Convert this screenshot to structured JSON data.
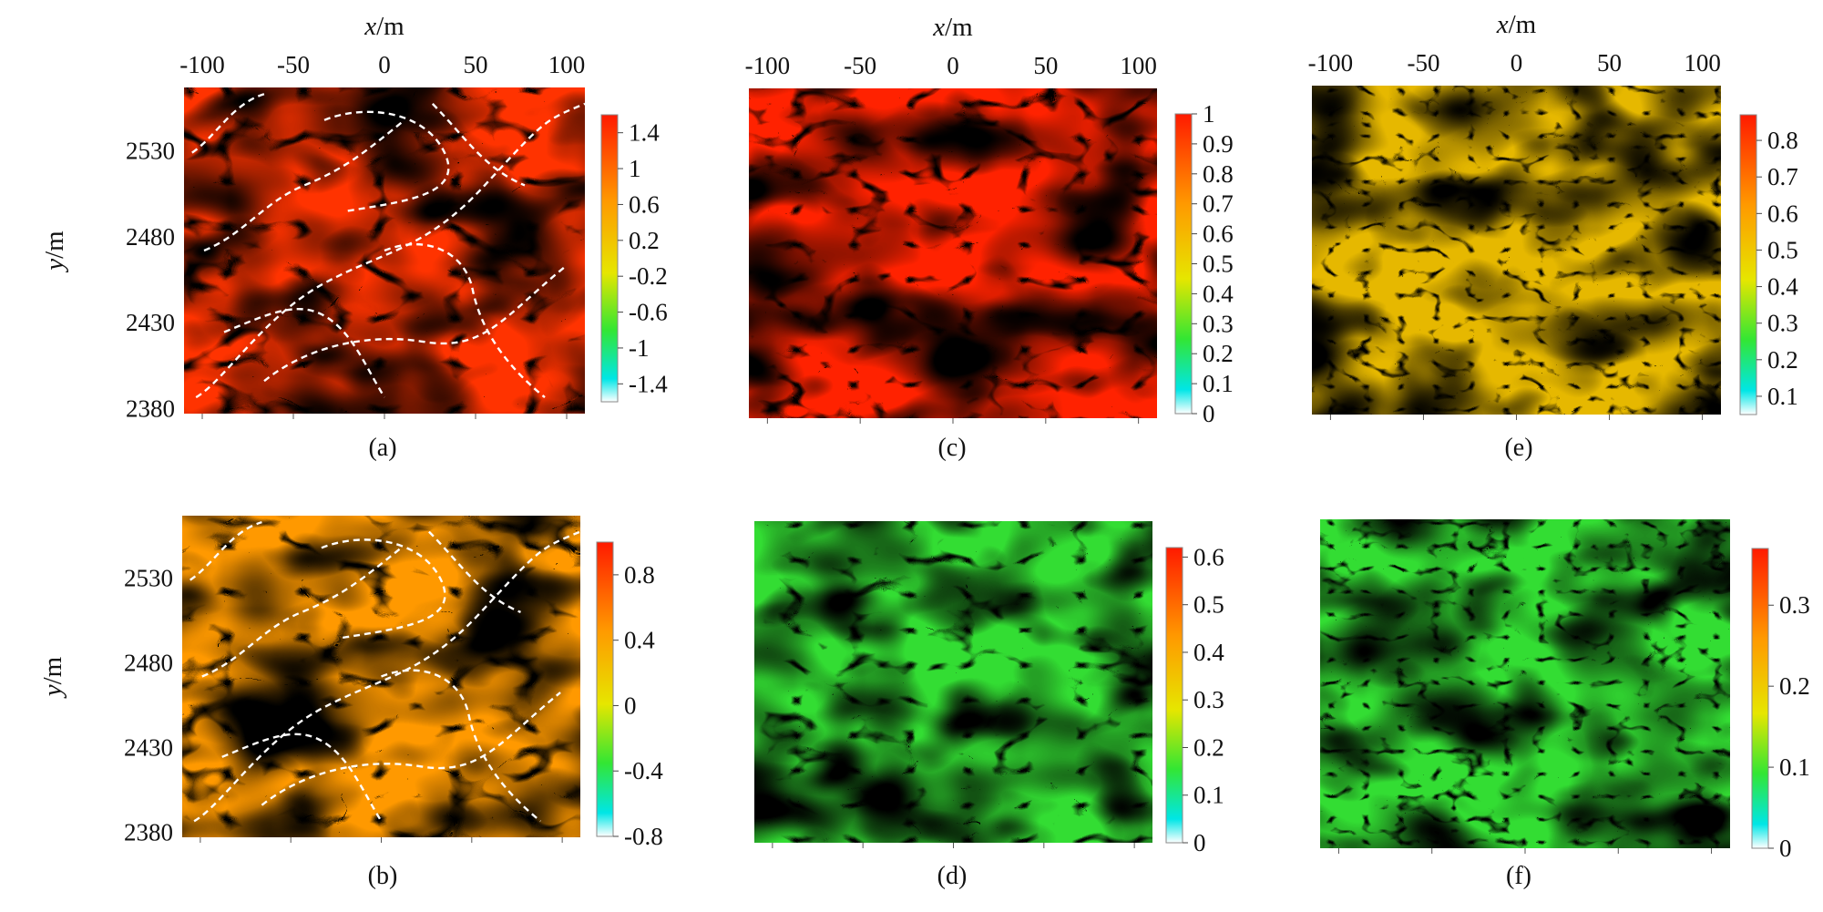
{
  "figure": {
    "x_axis_label": "x",
    "x_axis_unit": "/m",
    "y_axis_label": "y",
    "y_axis_unit": "/m",
    "x_ticks": [
      "-100",
      "-50",
      "0",
      "50",
      "100"
    ],
    "y_ticks": [
      "2530",
      "2480",
      "2430",
      "2380"
    ]
  },
  "chart_data": [
    {
      "type": "heatmap",
      "panel_label": "(a)",
      "x_ticks": [
        -100,
        -50,
        0,
        50,
        100
      ],
      "y_ticks": [
        2530,
        2480,
        2430,
        2380
      ],
      "colorbar_ticks": [
        "1.4",
        "1",
        "0.6",
        "0.2",
        "-0.2",
        "-0.6",
        "-1",
        "-1.4"
      ],
      "colorbar_range": [
        -1.6,
        1.6
      ],
      "dashed_overlay": true
    },
    {
      "type": "heatmap",
      "panel_label": "(b)",
      "x_ticks": [
        -100,
        -50,
        0,
        50,
        100
      ],
      "y_ticks": [
        2530,
        2480,
        2430,
        2380
      ],
      "colorbar_ticks": [
        "0.8",
        "0.4",
        "0",
        "-0.4",
        "-0.8"
      ],
      "colorbar_range": [
        -0.8,
        1.0
      ],
      "dashed_overlay": true
    },
    {
      "type": "heatmap",
      "panel_label": "(c)",
      "x_ticks": [
        -100,
        -50,
        0,
        50,
        100
      ],
      "colorbar_ticks": [
        "1",
        "0.9",
        "0.8",
        "0.7",
        "0.6",
        "0.5",
        "0.4",
        "0.3",
        "0.2",
        "0.1",
        "0"
      ],
      "colorbar_range": [
        0,
        1
      ]
    },
    {
      "type": "heatmap",
      "panel_label": "(d)",
      "colorbar_ticks": [
        "0.6",
        "0.5",
        "0.4",
        "0.3",
        "0.2",
        "0.1",
        "0"
      ],
      "colorbar_range": [
        0,
        0.62
      ]
    },
    {
      "type": "heatmap",
      "panel_label": "(e)",
      "x_ticks": [
        -100,
        -50,
        0,
        50,
        100
      ],
      "colorbar_ticks": [
        "0.8",
        "0.7",
        "0.6",
        "0.5",
        "0.4",
        "0.3",
        "0.2",
        "0.1"
      ],
      "colorbar_range": [
        0.05,
        0.87
      ]
    },
    {
      "type": "heatmap",
      "panel_label": "(f)",
      "colorbar_ticks": [
        "0.3",
        "0.2",
        "0.1",
        "0"
      ],
      "colorbar_range": [
        0,
        0.37
      ]
    }
  ],
  "colors": {
    "colormap": [
      "#ffffff",
      "#00e6e6",
      "#33e633",
      "#e6e600",
      "#ff9900",
      "#ff1a00"
    ],
    "terrain_dark": "#1a1a0d"
  }
}
